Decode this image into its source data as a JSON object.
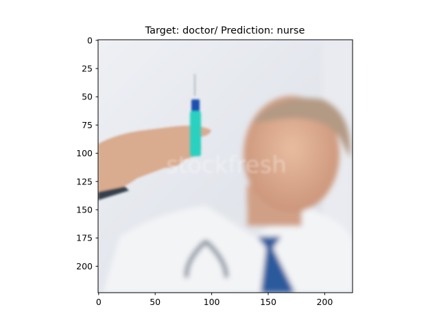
{
  "figure": {
    "title": "Target: doctor/ Prediction: nurse",
    "image_description_icon": "photo-doctor-holding-syringe",
    "watermark": "stockfresh",
    "x_ticks": [
      "0",
      "50",
      "100",
      "150",
      "200"
    ],
    "y_ticks": [
      "0",
      "25",
      "50",
      "75",
      "100",
      "125",
      "150",
      "175",
      "200"
    ],
    "colors": {
      "background": "#ffffff",
      "photo_background": "#e6e8ee",
      "coat": "#f3f4f6",
      "tie": "#2a5a9c",
      "syringe_fluid": "#2bd0c0",
      "syringe_plunger": "#1a4fb0",
      "skin": "#d9ab8f",
      "hair": "#b39a84"
    }
  }
}
